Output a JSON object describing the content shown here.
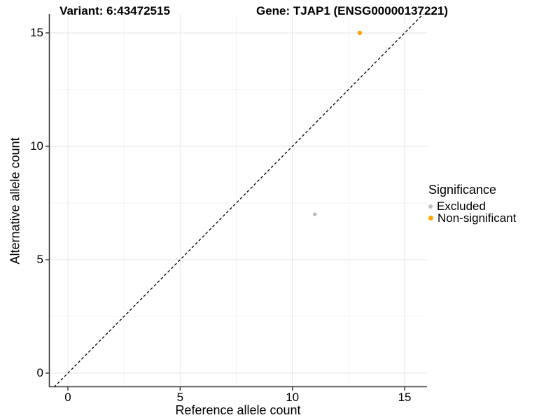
{
  "chart_data": {
    "type": "scatter",
    "title_left": "Variant: 6:43472515",
    "title_right": "Gene: TJAP1 (ENSG00000137221)",
    "xlabel": "Reference allele count",
    "ylabel": "Alternative allele count",
    "xlim": [
      -0.8,
      16.0
    ],
    "ylim": [
      -0.62,
      15.83
    ],
    "x_ticks": [
      0,
      5,
      10,
      15
    ],
    "y_ticks": [
      0,
      5,
      10,
      15
    ],
    "x_minor_ticks": [
      2.5,
      7.5,
      12.5
    ],
    "y_minor_ticks": [
      2.5,
      7.5,
      12.5
    ],
    "grid": true,
    "identity_line": {
      "type": "dashed",
      "slope": 1,
      "intercept": 0,
      "color": "#000000"
    },
    "series": [
      {
        "name": "Excluded",
        "color": "#BEBEBE",
        "size": 5.5,
        "points": [
          {
            "x": 11,
            "y": 7
          }
        ]
      },
      {
        "name": "Non-significant",
        "color": "#FFA500",
        "size": 6.5,
        "points": [
          {
            "x": 13,
            "y": 15
          }
        ]
      }
    ],
    "legend": {
      "title": "Significance",
      "position": "right",
      "entries": [
        {
          "label": "Excluded",
          "color": "#BEBEBE",
          "size": 6
        },
        {
          "label": "Non-significant",
          "color": "#FFA500",
          "size": 7
        }
      ]
    },
    "colors": {
      "grid_major": "#E6E6E6",
      "grid_minor": "#F3F3F3",
      "axis_line": "#3C3C3C",
      "tick_mark": "#333333",
      "background": "#FFFFFF"
    }
  }
}
